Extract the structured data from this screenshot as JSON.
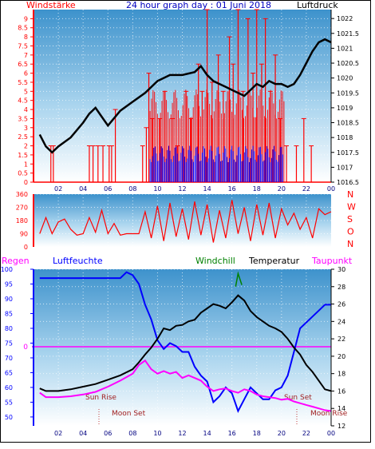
{
  "header": {
    "left_label": "Windstärke",
    "title": "24 hour graph day : 01 Juni 2018",
    "right_label": "Luftdruck"
  },
  "colors": {
    "wind": "#ff0000",
    "gust": "#0000ff",
    "pressure": "#000000",
    "humidity": "#0000ff",
    "temperature": "#000000",
    "dewpoint": "#ff00ff",
    "windchill": "#008000",
    "rain": "#ff0000",
    "direction": "#ff0000"
  },
  "chart_data": [
    {
      "type": "line",
      "left_axis": "Windstärke",
      "right_axis": "Luftdruck",
      "x_ticks": [
        "02",
        "04",
        "06",
        "08",
        "10",
        "12",
        "14",
        "16",
        "18",
        "20",
        "22",
        "00"
      ],
      "wind_ticks": [
        0,
        0.5,
        1,
        1.5,
        2,
        2.5,
        3,
        3.5,
        4,
        4.5,
        5,
        5.5,
        6,
        6.5,
        7,
        7.5,
        8,
        8.5,
        9
      ],
      "wind_ticks_labels": [
        "0",
        "0.5",
        "1",
        "1.5",
        "2",
        "2.5",
        "3",
        "3.5",
        "4",
        "4.5",
        "5",
        "5.5",
        "6",
        "6.5",
        "7",
        "7.5",
        "8",
        "8.5",
        "9"
      ],
      "ylim_wind": [
        0,
        9.5
      ],
      "pressure_ticks": [
        "1016.5",
        "1017",
        "1017.5",
        "1018",
        "1018.5",
        "1019",
        "1019.5",
        "1020",
        "1020.5",
        "1021",
        "1021.5",
        "1022"
      ],
      "ylim_pressure": [
        1016.5,
        1022.3
      ],
      "series": [
        {
          "name": "Luftdruck",
          "x": [
            0.5,
            1,
            1.5,
            2,
            3,
            4,
            4.5,
            5,
            5.5,
            6,
            7,
            8,
            9,
            10,
            11,
            12,
            13,
            13.5,
            14,
            14.5,
            15,
            15.5,
            16,
            16.5,
            17,
            17.5,
            18,
            18.5,
            19,
            19.5,
            20,
            20.5,
            21,
            21.5,
            22,
            22.5,
            23,
            23.5,
            24
          ],
          "y": [
            1018.1,
            1017.7,
            1017.5,
            1017.7,
            1018.0,
            1018.5,
            1018.8,
            1019.0,
            1018.7,
            1018.4,
            1018.9,
            1019.2,
            1019.5,
            1019.9,
            1020.1,
            1020.1,
            1020.2,
            1020.4,
            1020.1,
            1019.9,
            1019.8,
            1019.7,
            1019.6,
            1019.5,
            1019.4,
            1019.6,
            1019.8,
            1019.7,
            1019.9,
            1019.8,
            1019.8,
            1019.7,
            1019.8,
            1020.1,
            1020.5,
            1020.9,
            1021.2,
            1021.3,
            1021.2
          ]
        }
      ],
      "wind_spikes": [
        {
          "x": 1.4,
          "v": 2
        },
        {
          "x": 1.6,
          "v": 2
        },
        {
          "x": 4.5,
          "v": 2
        },
        {
          "x": 4.8,
          "v": 2
        },
        {
          "x": 5.2,
          "v": 2
        },
        {
          "x": 5.6,
          "v": 2
        },
        {
          "x": 6.1,
          "v": 2
        },
        {
          "x": 6.3,
          "v": 2
        },
        {
          "x": 6.6,
          "v": 4
        },
        {
          "x": 8.8,
          "v": 2
        },
        {
          "x": 9.1,
          "v": 3
        },
        {
          "x": 9.3,
          "v": 6
        },
        {
          "x": 9.6,
          "v": 3.5
        },
        {
          "x": 10.2,
          "v": 3.5
        },
        {
          "x": 10.6,
          "v": 5
        },
        {
          "x": 11.2,
          "v": 3.5
        },
        {
          "x": 11.6,
          "v": 2
        },
        {
          "x": 12.3,
          "v": 5
        },
        {
          "x": 12.7,
          "v": 3.5
        },
        {
          "x": 13.3,
          "v": 6.5
        },
        {
          "x": 13.6,
          "v": 5
        },
        {
          "x": 14,
          "v": 9.5
        },
        {
          "x": 14.4,
          "v": 5.5
        },
        {
          "x": 14.9,
          "v": 7
        },
        {
          "x": 15.3,
          "v": 5
        },
        {
          "x": 15.8,
          "v": 8
        },
        {
          "x": 16.1,
          "v": 6.5
        },
        {
          "x": 16.5,
          "v": 9.5
        },
        {
          "x": 16.9,
          "v": 5
        },
        {
          "x": 17.3,
          "v": 9
        },
        {
          "x": 17.7,
          "v": 6
        },
        {
          "x": 18,
          "v": 9.5
        },
        {
          "x": 18.4,
          "v": 6.5
        },
        {
          "x": 18.7,
          "v": 9
        },
        {
          "x": 19.1,
          "v": 5
        },
        {
          "x": 19.5,
          "v": 7
        },
        {
          "x": 19.9,
          "v": 3.5
        },
        {
          "x": 20.4,
          "v": 2
        },
        {
          "x": 21.2,
          "v": 2
        },
        {
          "x": 21.8,
          "v": 3.5
        },
        {
          "x": 22.4,
          "v": 2
        }
      ],
      "gust_band": {
        "x_from": 9.4,
        "x_to": 20.2,
        "v": 2
      }
    },
    {
      "type": "scatter",
      "left_axis_ticks": [
        0,
        90,
        180,
        270,
        360
      ],
      "left_axis_labels": [
        "0",
        "90",
        "180",
        "270",
        "360"
      ],
      "right_axis_labels": [
        "N",
        "W",
        "S",
        "O",
        "N"
      ],
      "ylim": [
        0,
        360
      ],
      "direction_points": [
        {
          "x": 0.5,
          "y": 90
        },
        {
          "x": 1,
          "y": 200
        },
        {
          "x": 1.5,
          "y": 90
        },
        {
          "x": 2,
          "y": 170
        },
        {
          "x": 2.5,
          "y": 190
        },
        {
          "x": 3,
          "y": 120
        },
        {
          "x": 3.5,
          "y": 80
        },
        {
          "x": 4,
          "y": 90
        },
        {
          "x": 4.5,
          "y": 200
        },
        {
          "x": 5,
          "y": 100
        },
        {
          "x": 5.5,
          "y": 250
        },
        {
          "x": 6,
          "y": 90
        },
        {
          "x": 6.5,
          "y": 160
        },
        {
          "x": 7,
          "y": 80
        },
        {
          "x": 7.5,
          "y": 90
        },
        {
          "x": 8,
          "y": 90
        },
        {
          "x": 8.5,
          "y": 90
        },
        {
          "x": 9,
          "y": 240
        },
        {
          "x": 9.5,
          "y": 60
        },
        {
          "x": 10,
          "y": 280
        },
        {
          "x": 10.5,
          "y": 40
        },
        {
          "x": 11,
          "y": 300
        },
        {
          "x": 11.5,
          "y": 70
        },
        {
          "x": 12,
          "y": 260
        },
        {
          "x": 12.5,
          "y": 50
        },
        {
          "x": 13,
          "y": 310
        },
        {
          "x": 13.5,
          "y": 80
        },
        {
          "x": 14,
          "y": 290
        },
        {
          "x": 14.5,
          "y": 30
        },
        {
          "x": 15,
          "y": 250
        },
        {
          "x": 15.5,
          "y": 60
        },
        {
          "x": 16,
          "y": 320
        },
        {
          "x": 16.5,
          "y": 90
        },
        {
          "x": 17,
          "y": 270
        },
        {
          "x": 17.5,
          "y": 40
        },
        {
          "x": 18,
          "y": 290
        },
        {
          "x": 18.5,
          "y": 80
        },
        {
          "x": 19,
          "y": 300
        },
        {
          "x": 19.5,
          "y": 60
        },
        {
          "x": 20,
          "y": 260
        },
        {
          "x": 20.5,
          "y": 150
        },
        {
          "x": 21,
          "y": 230
        },
        {
          "x": 21.5,
          "y": 120
        },
        {
          "x": 22,
          "y": 200
        },
        {
          "x": 22.5,
          "y": 60
        },
        {
          "x": 23,
          "y": 260
        },
        {
          "x": 23.5,
          "y": 220
        },
        {
          "x": 24,
          "y": 240
        }
      ]
    },
    {
      "type": "line",
      "header_labels": {
        "rain": "Regen",
        "humidity": "Luftfeuchte",
        "windchill": "Windchill",
        "temperature": "Temperatur",
        "dewpoint": "Taupunkt"
      },
      "humidity_ticks": [
        50,
        55,
        60,
        65,
        70,
        75,
        80,
        85,
        90,
        95,
        100
      ],
      "humidity_labels": [
        "50",
        "55",
        "60",
        "65",
        "70",
        "75",
        "80",
        "85",
        "90",
        "95",
        "100"
      ],
      "ylim_humidity": [
        47,
        100
      ],
      "temperature_ticks": [
        12,
        14,
        16,
        18,
        20,
        22,
        24,
        26,
        28,
        30
      ],
      "temperature_labels": [
        "12",
        "14",
        "16",
        "18",
        "20",
        "22",
        "24",
        "26",
        "28",
        "30"
      ],
      "ylim_temperature": [
        12,
        30
      ],
      "rain_axis_label": "0",
      "rain_value": 0,
      "sun_rise_label": "Sun Rise",
      "moon_set_label": "Moon Set",
      "sun_set_label": "Sun Set",
      "moon_rise_label": "Moon Rise",
      "series": [
        {
          "name": "Luftfeuchte",
          "x": [
            0.5,
            2,
            4,
            6,
            7,
            7.5,
            8,
            8.5,
            9,
            9.5,
            10,
            10.5,
            11,
            11.5,
            12,
            12.5,
            13,
            13.5,
            14,
            14.5,
            15,
            15.5,
            16,
            16.5,
            17,
            17.5,
            18,
            18.5,
            19,
            19.5,
            20,
            20.5,
            21,
            21.5,
            22,
            22.5,
            23,
            23.5,
            24
          ],
          "y": [
            97,
            97,
            97,
            97,
            97,
            99,
            98,
            95,
            88,
            83,
            76,
            73,
            75,
            74,
            72,
            72,
            67,
            64,
            62,
            55,
            57,
            60,
            58,
            52,
            56,
            60,
            58,
            56,
            56,
            59,
            60,
            64,
            72,
            80,
            82,
            84,
            86,
            88,
            88
          ]
        },
        {
          "name": "Temperatur",
          "x": [
            0.5,
            1,
            2,
            3,
            4,
            5,
            6,
            7,
            8,
            8.5,
            9,
            9.5,
            10,
            10.5,
            11,
            11.5,
            12,
            12.5,
            13,
            13.5,
            14,
            14.5,
            15,
            15.5,
            16,
            16.5,
            17,
            17.5,
            18,
            18.5,
            19,
            19.5,
            20,
            20.5,
            21,
            21.5,
            22,
            22.5,
            23,
            23.5,
            24
          ],
          "y": [
            16.3,
            16.0,
            16.0,
            16.2,
            16.5,
            16.8,
            17.3,
            17.8,
            18.5,
            19.3,
            20.2,
            21.0,
            22.0,
            23.2,
            23.0,
            23.5,
            23.6,
            24.0,
            24.2,
            25.0,
            25.5,
            26.0,
            25.8,
            25.5,
            26.2,
            27.0,
            26.4,
            25.2,
            24.5,
            24.0,
            23.5,
            23.2,
            22.8,
            22.0,
            21.0,
            20.2,
            19.0,
            18.2,
            17.2,
            16.2,
            16.0
          ]
        },
        {
          "name": "Taupunkt",
          "x": [
            0.5,
            1,
            2,
            3,
            4,
            5,
            6,
            7,
            8,
            8.5,
            9,
            9.5,
            10,
            10.5,
            11,
            11.5,
            12,
            12.5,
            13,
            13.5,
            14,
            14.5,
            15,
            15.5,
            16,
            16.5,
            17,
            17.5,
            18,
            18.5,
            19,
            19.5,
            20,
            20.5,
            21,
            21.5,
            22,
            22.5,
            23,
            23.5,
            24
          ],
          "y": [
            15.8,
            15.3,
            15.3,
            15.4,
            15.6,
            15.9,
            16.5,
            17.2,
            18.0,
            19.0,
            19.5,
            18.5,
            18.0,
            18.3,
            18.0,
            18.2,
            17.5,
            17.8,
            17.5,
            17.2,
            16.5,
            16.0,
            16.2,
            16.3,
            16.0,
            15.8,
            16.2,
            16.0,
            15.6,
            15.4,
            15.3,
            15.2,
            15.0,
            15.1,
            14.8,
            14.6,
            14.4,
            14.2,
            14.0,
            13.8,
            13.7
          ]
        },
        {
          "name": "Windchill",
          "x": [
            16.3,
            16.5,
            16.8
          ],
          "y": [
            28.0,
            29.5,
            28.2
          ]
        }
      ],
      "x_ticks": [
        "02",
        "04",
        "06",
        "08",
        "10",
        "12",
        "14",
        "16",
        "18",
        "20",
        "22",
        "00"
      ]
    }
  ]
}
